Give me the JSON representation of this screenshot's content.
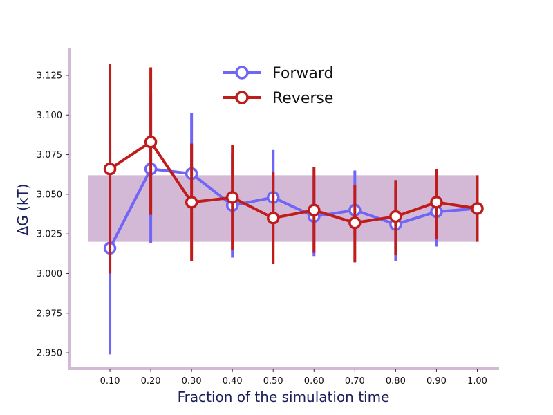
{
  "chart_data": {
    "type": "line",
    "xlabel": "Fraction of the simulation time",
    "ylabel": "ΔG (kT)",
    "xlim": [
      0.0,
      1.05
    ],
    "ylim": [
      2.94,
      3.142
    ],
    "x_ticks": [
      "0.10",
      "0.20",
      "0.30",
      "0.40",
      "0.50",
      "0.60",
      "0.70",
      "0.80",
      "0.90",
      "1.00"
    ],
    "y_ticks": [
      "2.950",
      "2.975",
      "3.000",
      "3.025",
      "3.050",
      "3.075",
      "3.100",
      "3.125"
    ],
    "x": [
      0.1,
      0.2,
      0.3,
      0.4,
      0.5,
      0.6,
      0.7,
      0.8,
      0.9,
      1.0
    ],
    "band": {
      "x": [
        0.0,
        1.0
      ],
      "y": [
        3.02,
        3.062
      ],
      "color": "#d3b9d6"
    },
    "series": [
      {
        "name": "Forward",
        "color": "#7066f5",
        "values": [
          3.016,
          3.066,
          3.063,
          3.043,
          3.048,
          3.036,
          3.04,
          3.031,
          3.039,
          3.041
        ],
        "err_low": [
          2.949,
          3.019,
          3.062,
          3.01,
          3.034,
          3.011,
          3.023,
          3.008,
          3.017,
          3.021
        ],
        "err_high": [
          3.083,
          3.113,
          3.101,
          3.076,
          3.078,
          3.061,
          3.065,
          3.054,
          3.061,
          3.061
        ]
      },
      {
        "name": "Reverse",
        "color": "#c01c1c",
        "values": [
          3.066,
          3.083,
          3.045,
          3.048,
          3.035,
          3.04,
          3.032,
          3.036,
          3.045,
          3.041
        ],
        "err_low": [
          3.0,
          3.037,
          3.008,
          3.015,
          3.006,
          3.013,
          3.007,
          3.012,
          3.022,
          3.02
        ],
        "err_high": [
          3.132,
          3.13,
          3.082,
          3.081,
          3.064,
          3.067,
          3.056,
          3.059,
          3.066,
          3.062
        ]
      }
    ],
    "legend": {
      "position": "top-center"
    },
    "spine_color": "#d3b9d6",
    "grid": false
  }
}
